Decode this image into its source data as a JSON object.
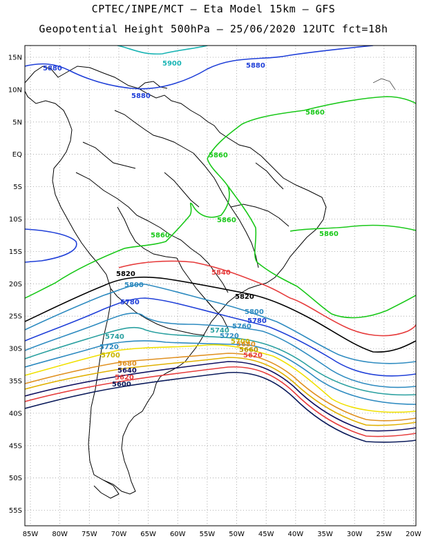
{
  "header": {
    "line1": "CPTEC/INPE/MCT –  Eta Model 15km – GFS",
    "line2": "Geopotential Height 500hPa – 25/06/2020 12UTC fct=18h"
  },
  "map": {
    "lat_labels": [
      "15N",
      "10N",
      "5N",
      "EQ",
      "5S",
      "10S",
      "15S",
      "20S",
      "25S",
      "30S",
      "35S",
      "40S",
      "45S",
      "50S",
      "55S"
    ],
    "lat_values": [
      15,
      10,
      5,
      0,
      -5,
      -10,
      -15,
      -20,
      -25,
      -30,
      -35,
      -40,
      -45,
      -50,
      -55
    ],
    "lon_labels": [
      "85W",
      "80W",
      "75W",
      "70W",
      "65W",
      "60W",
      "55W",
      "50W",
      "45W",
      "40W",
      "35W",
      "30W",
      "25W",
      "20W"
    ],
    "lon_values": [
      -85,
      -80,
      -75,
      -70,
      -65,
      -60,
      -55,
      -50,
      -45,
      -40,
      -35,
      -30,
      -25,
      -20
    ],
    "gridlines": true
  },
  "contours": [
    {
      "value": "5900",
      "color": "#19b4b4"
    },
    {
      "value": "5880",
      "color": "#1f3fd8"
    },
    {
      "value": "5860",
      "color": "#19c819"
    },
    {
      "value": "5840",
      "color": "#e63c3c"
    },
    {
      "value": "5820",
      "color": "#000000"
    },
    {
      "value": "5800",
      "color": "#2e8bc0"
    },
    {
      "value": "5780",
      "color": "#1f3fd8"
    },
    {
      "value": "5760",
      "color": "#2e8bc0"
    },
    {
      "value": "5740",
      "color": "#2aa0a0"
    },
    {
      "value": "5720",
      "color": "#2e8bc0"
    },
    {
      "value": "5700",
      "color": "#f0e000"
    },
    {
      "value": "5680",
      "color": "#e09020"
    },
    {
      "value": "5660",
      "color": "#e0b000"
    },
    {
      "value": "5640",
      "color": "#101060"
    },
    {
      "value": "5620",
      "color": "#e63c3c"
    },
    {
      "value": "5600",
      "color": "#0a1a5a"
    }
  ]
}
